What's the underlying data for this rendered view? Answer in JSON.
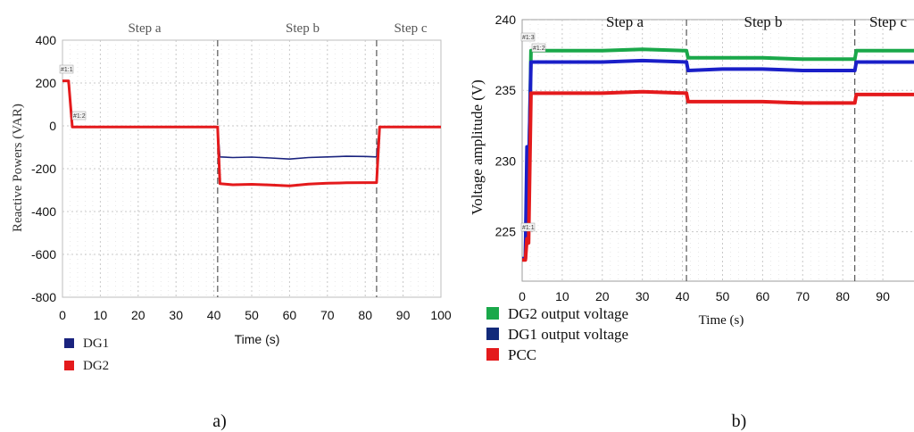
{
  "chart_data": [
    {
      "type": "line",
      "panel_caption": "a)",
      "ylabel": "Reactive Powers (VAR)",
      "xlabel": "Time (s)",
      "xlim": [
        0,
        100
      ],
      "ylim": [
        -800,
        400
      ],
      "x_ticks": [
        "0",
        "10",
        "20",
        "30",
        "40",
        "50",
        "60",
        "70",
        "80",
        "90",
        "100"
      ],
      "y_ticks": [
        "400",
        "200",
        "0",
        "-200",
        "-400",
        "-600",
        "-800"
      ],
      "grid": true,
      "legend_position": "bottom-left",
      "step_labels": [
        "Step a",
        "Step b",
        "Step c"
      ],
      "step_boundaries": [
        41,
        83
      ],
      "markers": [
        "#1:1",
        "#1:2"
      ],
      "series": [
        {
          "name": "DG1",
          "color": "#1a237e",
          "points": [
            [
              0,
              210
            ],
            [
              1.6,
              210
            ],
            [
              2.6,
              -5
            ],
            [
              10,
              -5
            ],
            [
              20,
              -5
            ],
            [
              30,
              -5
            ],
            [
              41,
              -5
            ],
            [
              41.6,
              -145
            ],
            [
              45,
              -148
            ],
            [
              50,
              -146
            ],
            [
              55,
              -150
            ],
            [
              60,
              -155
            ],
            [
              65,
              -148
            ],
            [
              70,
              -145
            ],
            [
              75,
              -142
            ],
            [
              80,
              -143
            ],
            [
              83,
              -145
            ],
            [
              83.8,
              -5
            ],
            [
              90,
              -5
            ],
            [
              100,
              -5
            ]
          ]
        },
        {
          "name": "DG2",
          "color": "#e41a1c",
          "points": [
            [
              0,
              210
            ],
            [
              1.6,
              210
            ],
            [
              2.6,
              -5
            ],
            [
              10,
              -5
            ],
            [
              20,
              -5
            ],
            [
              30,
              -5
            ],
            [
              41,
              -5
            ],
            [
              41.6,
              -270
            ],
            [
              45,
              -275
            ],
            [
              50,
              -273
            ],
            [
              55,
              -276
            ],
            [
              60,
              -280
            ],
            [
              65,
              -272
            ],
            [
              70,
              -268
            ],
            [
              75,
              -266
            ],
            [
              80,
              -265
            ],
            [
              83,
              -265
            ],
            [
              83.8,
              -5
            ],
            [
              90,
              -5
            ],
            [
              100,
              -5
            ]
          ]
        }
      ]
    },
    {
      "type": "line",
      "panel_caption": "b)",
      "ylabel": "Voltage amplitude (V)",
      "xlabel": "Time (s)",
      "xlim": [
        0,
        98
      ],
      "ylim": [
        221.5,
        240
      ],
      "x_ticks": [
        "0",
        "10",
        "20",
        "30",
        "40",
        "50",
        "60",
        "70",
        "80",
        "90"
      ],
      "y_ticks": [
        "240",
        "235",
        "230",
        "225"
      ],
      "grid": true,
      "legend_position": "bottom-left",
      "step_labels": [
        "Step a",
        "Step b",
        "Step c"
      ],
      "step_boundaries": [
        41,
        83
      ],
      "markers": [
        "#1:3",
        "#1:2",
        "#1:1"
      ],
      "series": [
        {
          "name": "DG2 output voltage",
          "color": "#1aa84a",
          "points": [
            [
              0,
              223.1
            ],
            [
              0.8,
              223.1
            ],
            [
              1.2,
              229
            ],
            [
              1.6,
              228
            ],
            [
              2.2,
              237.8
            ],
            [
              10,
              237.8
            ],
            [
              20,
              237.8
            ],
            [
              30,
              237.9
            ],
            [
              41,
              237.8
            ],
            [
              41.4,
              237.3
            ],
            [
              50,
              237.3
            ],
            [
              60,
              237.3
            ],
            [
              70,
              237.2
            ],
            [
              83,
              237.2
            ],
            [
              83.4,
              237.8
            ],
            [
              90,
              237.8
            ],
            [
              98,
              237.8
            ]
          ]
        },
        {
          "name": "DG1 output voltage",
          "color": "#1a1fc8",
          "points": [
            [
              0,
              223.1
            ],
            [
              0.8,
              223.1
            ],
            [
              1.2,
              231
            ],
            [
              1.6,
              229
            ],
            [
              2.2,
              237.0
            ],
            [
              10,
              237.0
            ],
            [
              20,
              237.0
            ],
            [
              30,
              237.1
            ],
            [
              41,
              237.0
            ],
            [
              41.4,
              236.4
            ],
            [
              50,
              236.5
            ],
            [
              60,
              236.5
            ],
            [
              70,
              236.4
            ],
            [
              83,
              236.4
            ],
            [
              83.4,
              237.0
            ],
            [
              90,
              237.0
            ],
            [
              98,
              237.0
            ]
          ]
        },
        {
          "name": "PCC",
          "color": "#e41a1c",
          "points": [
            [
              0,
              223.0
            ],
            [
              0.8,
              223.0
            ],
            [
              1.2,
              224.5
            ],
            [
              1.6,
              224.2
            ],
            [
              2.2,
              234.8
            ],
            [
              10,
              234.8
            ],
            [
              20,
              234.8
            ],
            [
              30,
              234.9
            ],
            [
              41,
              234.8
            ],
            [
              41.4,
              234.2
            ],
            [
              50,
              234.2
            ],
            [
              60,
              234.2
            ],
            [
              70,
              234.1
            ],
            [
              83,
              234.1
            ],
            [
              83.4,
              234.7
            ],
            [
              90,
              234.7
            ],
            [
              98,
              234.7
            ]
          ]
        }
      ]
    }
  ]
}
